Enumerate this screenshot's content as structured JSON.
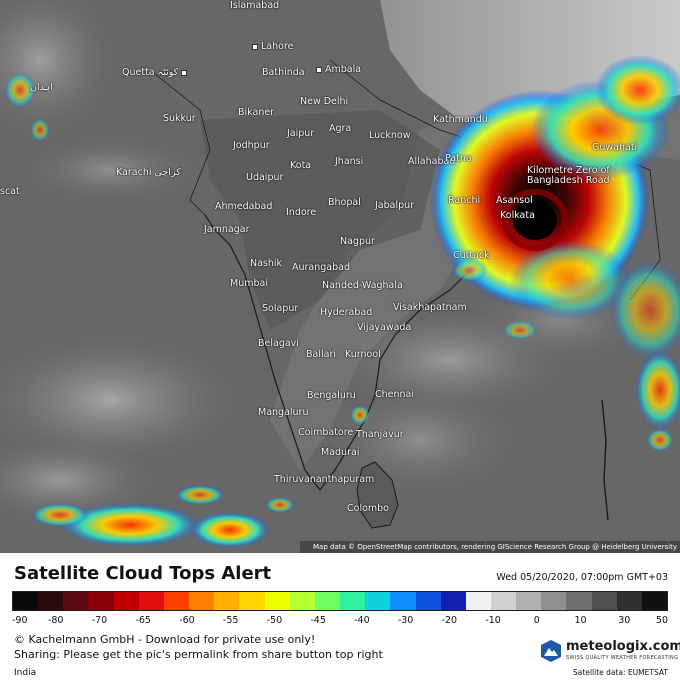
{
  "map": {
    "cities": [
      {
        "name": "Islamabad"
      },
      {
        "name": "Lahore"
      },
      {
        "name": "Quetta کوئٹہ"
      },
      {
        "name": "Bathinda"
      },
      {
        "name": "Ambala"
      },
      {
        "name": "اہدان"
      },
      {
        "name": "New Delhi"
      },
      {
        "name": "Sukkur"
      },
      {
        "name": "Bikaner"
      },
      {
        "name": "Jaipur"
      },
      {
        "name": "Agra"
      },
      {
        "name": "Lucknow"
      },
      {
        "name": "Kathmandu"
      },
      {
        "name": "Jodhpur"
      },
      {
        "name": "Kota"
      },
      {
        "name": "Jhansi"
      },
      {
        "name": "Allahabad"
      },
      {
        "name": "Patna"
      },
      {
        "name": "Guwahati"
      },
      {
        "name": "Karachi کراچی"
      },
      {
        "name": "Udaipur"
      },
      {
        "name": "Kilometre Zero of Bangladesh Road"
      },
      {
        "name": "scat"
      },
      {
        "name": "Ahmedabad"
      },
      {
        "name": "Indore"
      },
      {
        "name": "Bhopal"
      },
      {
        "name": "Jabalpur"
      },
      {
        "name": "Ranchi"
      },
      {
        "name": "Asansol"
      },
      {
        "name": "Kolkata"
      },
      {
        "name": "Jamnagar"
      },
      {
        "name": "Nagpur"
      },
      {
        "name": "Nashik"
      },
      {
        "name": "Aurangabad"
      },
      {
        "name": "Cuttack"
      },
      {
        "name": "Mumbai"
      },
      {
        "name": "Nanded-Waghala"
      },
      {
        "name": "Solapur"
      },
      {
        "name": "Hyderabad"
      },
      {
        "name": "Visakhapatnam"
      },
      {
        "name": "Vijayawada"
      },
      {
        "name": "Belagavi"
      },
      {
        "name": "Ballari"
      },
      {
        "name": "Kurnool"
      },
      {
        "name": "Chennai"
      },
      {
        "name": "Bengaluru"
      },
      {
        "name": "Mangaluru"
      },
      {
        "name": "Coimbatore"
      },
      {
        "name": "Thanjavur"
      },
      {
        "name": "Madurai"
      },
      {
        "name": "Thiruvananthapuram"
      },
      {
        "name": "Colombo"
      }
    ],
    "attribution": "Map data © OpenStreetMap contributors, rendering GIScience Research Group @ Heidelberg University"
  },
  "panel": {
    "title": "Satellite Cloud Tops Alert",
    "timestamp": "Wed 05/20/2020, 07:00pm GMT+03",
    "scale_ticks": [
      "-90",
      "-80",
      "-70",
      "-65",
      "-60",
      "-55",
      "-50",
      "-45",
      "-40",
      "-30",
      "-20",
      "-10",
      "0",
      "10",
      "30",
      "50"
    ],
    "scale_colors": [
      "#0a0a0a",
      "#2a0a0a",
      "#5a0a10",
      "#8a0008",
      "#c00000",
      "#e01010",
      "#ff4000",
      "#ff8000",
      "#ffb000",
      "#ffd800",
      "#f0ff00",
      "#b8ff30",
      "#70ff60",
      "#30f0a0",
      "#10d0e0",
      "#1090ff",
      "#1050e0",
      "#1020b0",
      "#f0f0f0",
      "#d0d0d0",
      "#b0b0b0",
      "#909090",
      "#707070",
      "#505050",
      "#303030",
      "#101010"
    ],
    "copyright": "© Kachelmann GmbH - Download for private use only!",
    "sharing": "Sharing: Please get the pic's permalink from share button top right",
    "region": "India",
    "logo_name": "meteologix.com",
    "logo_tagline": "SWISS QUALITY WEATHER FORECASTING",
    "satellite_data": "Satellite data: EUMETSAT"
  }
}
